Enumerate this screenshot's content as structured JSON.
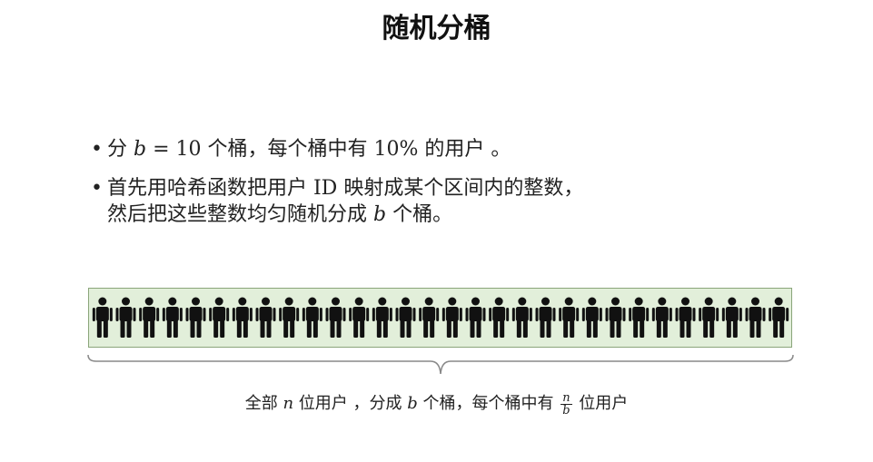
{
  "title": "随机分桶",
  "bullets": [
    {
      "dot": "•",
      "lines": [
        {
          "pre": "分 ",
          "var": "b",
          "post": " = 10 个桶，每个桶中有 10% 的用户 。"
        }
      ]
    },
    {
      "dot": "•",
      "lines": [
        {
          "pre": "首先用哈希函数把用户 ID 映射成某个区间内的整数，",
          "var": "",
          "post": ""
        },
        {
          "pre": "然后把这些整数均匀随机分成 ",
          "var": "b",
          "post": " 个桶。"
        }
      ]
    }
  ],
  "people": {
    "count": 30,
    "icon": "person-icon",
    "color": "#111111",
    "bar_fill": "#e2efda",
    "bar_border": "#8aa57a"
  },
  "caption": {
    "part1": "全部 ",
    "var_n": "n",
    "part2": " 位用户 ，分成 ",
    "var_b": "b",
    "part3": " 个桶，每个桶中有 ",
    "frac_num": "n",
    "frac_den": "b",
    "part4": " 位用户"
  }
}
